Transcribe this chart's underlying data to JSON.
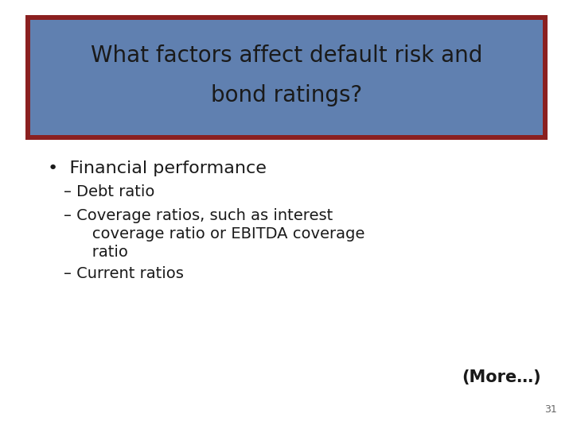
{
  "title_line1": "What factors affect default risk and",
  "title_line2": "bond ratings?",
  "title_bg_color": "#6080b0",
  "title_border_color": "#8b2020",
  "title_text_color": "#1a1a1a",
  "bullet_text": "•  Financial performance",
  "sub_bullet1": "– Debt ratio",
  "sub_bullet2_line1": "– Coverage ratios, such as interest",
  "sub_bullet2_line2": "   coverage ratio or EBITDA coverage",
  "sub_bullet2_line3": "   ratio",
  "sub_bullet3": "– Current ratios",
  "more_text": "(More…)",
  "page_number": "31",
  "bg_color": "#ffffff",
  "body_text_color": "#1a1a1a",
  "title_fontsize": 20,
  "bullet_fontsize": 16,
  "sub_bullet_fontsize": 14,
  "more_fontsize": 15
}
